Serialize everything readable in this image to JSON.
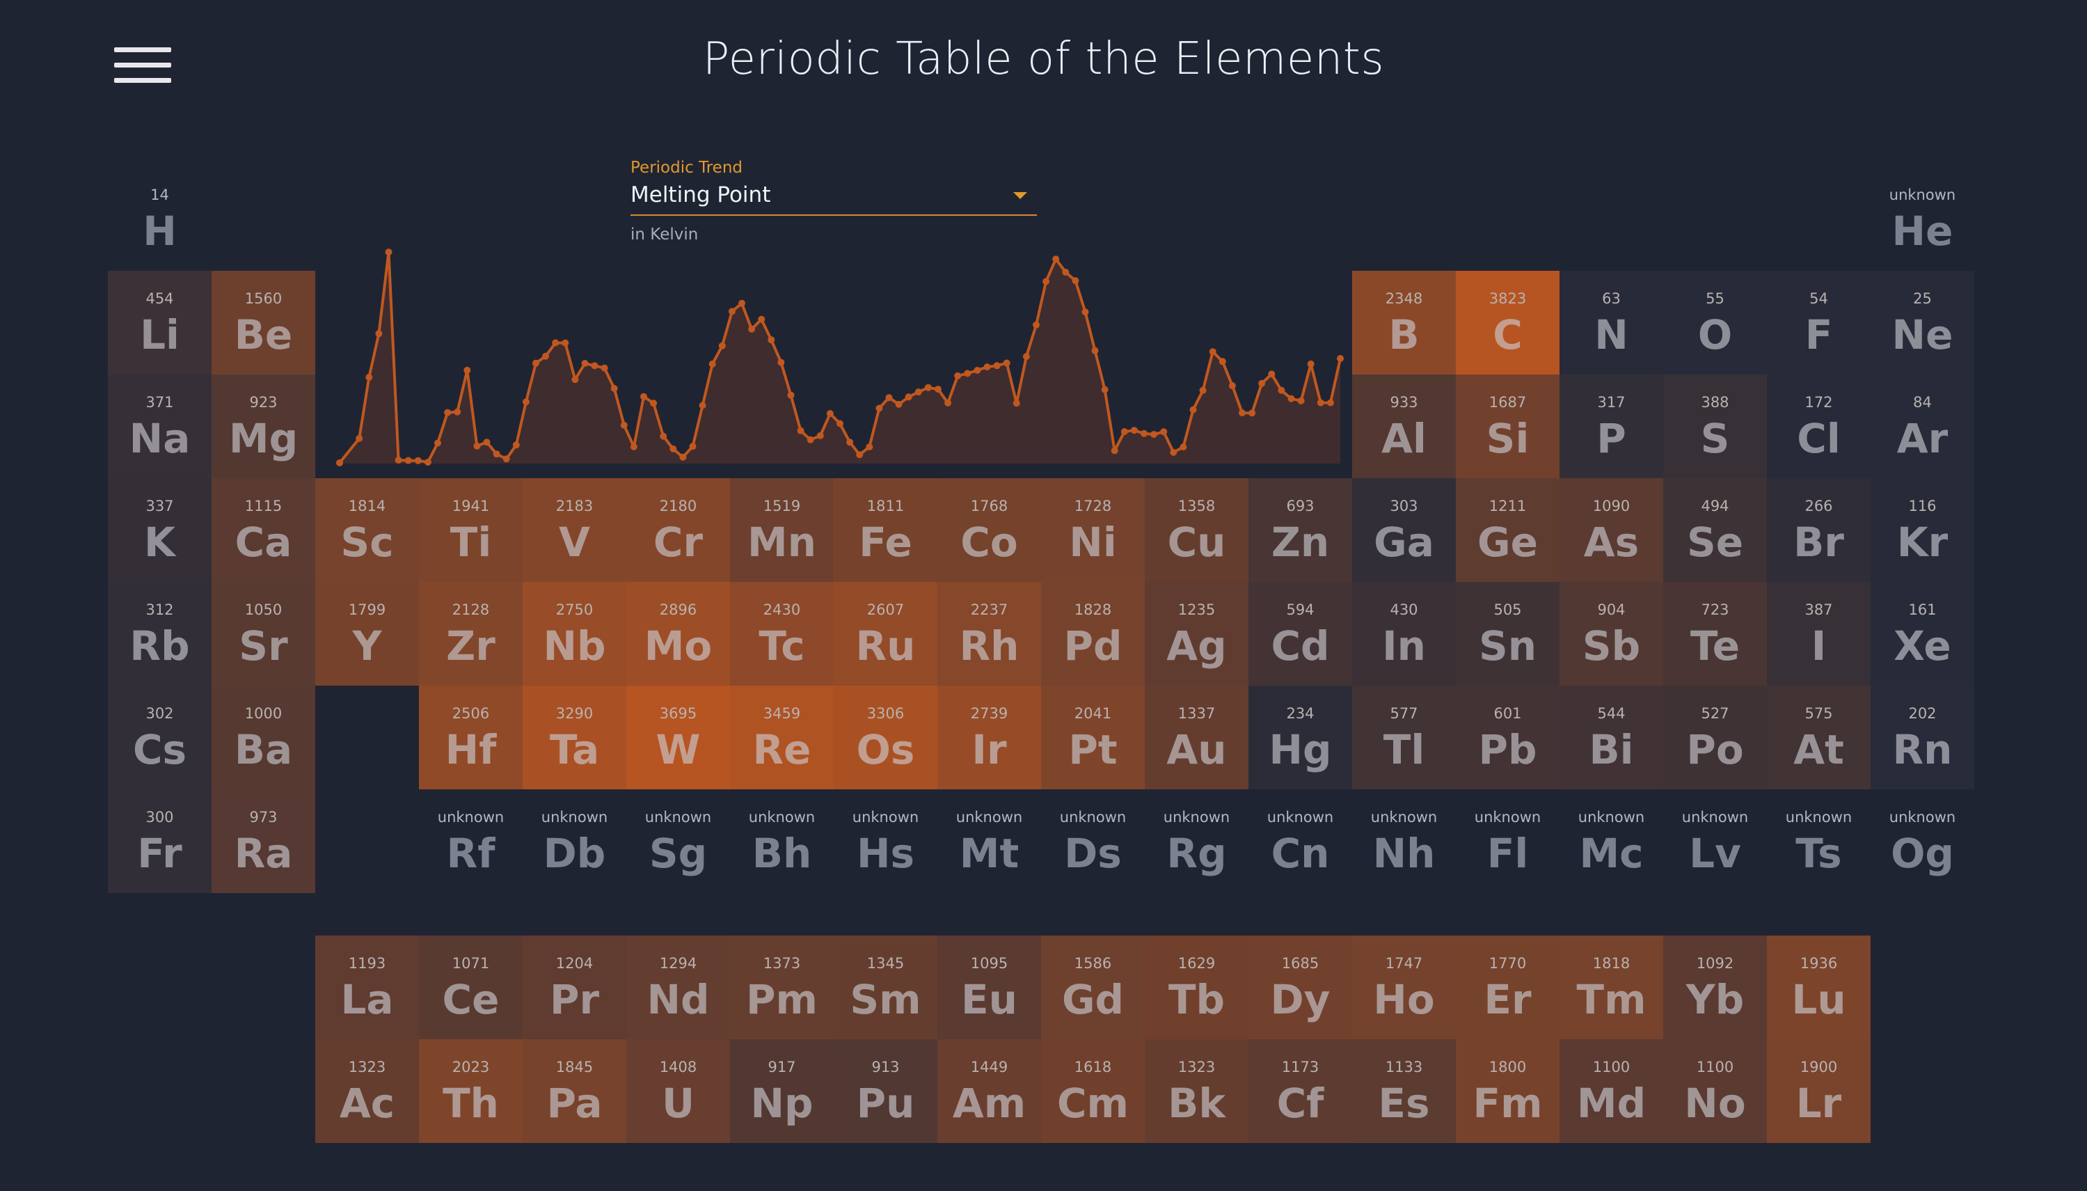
{
  "page": {
    "title": "Periodic Table of the Elements"
  },
  "menu": {
    "icon": "hamburger-menu-icon"
  },
  "trend": {
    "label": "Periodic Trend",
    "selected": "Melting Point",
    "unit": "in Kelvin"
  },
  "colors": {
    "background": "#1f2433",
    "accent": "#e09a2c",
    "chart_line": "#c0581f",
    "hot": "#b65522",
    "cold": "#272b39"
  },
  "elements": [
    {
      "z": 1,
      "sym": "H",
      "val": "14"
    },
    {
      "z": 2,
      "sym": "He",
      "val": "unknown"
    },
    {
      "z": 3,
      "sym": "Li",
      "val": "454"
    },
    {
      "z": 4,
      "sym": "Be",
      "val": "1560"
    },
    {
      "z": 5,
      "sym": "B",
      "val": "2348"
    },
    {
      "z": 6,
      "sym": "C",
      "val": "3823"
    },
    {
      "z": 7,
      "sym": "N",
      "val": "63"
    },
    {
      "z": 8,
      "sym": "O",
      "val": "55"
    },
    {
      "z": 9,
      "sym": "F",
      "val": "54"
    },
    {
      "z": 10,
      "sym": "Ne",
      "val": "25"
    },
    {
      "z": 11,
      "sym": "Na",
      "val": "371"
    },
    {
      "z": 12,
      "sym": "Mg",
      "val": "923"
    },
    {
      "z": 13,
      "sym": "Al",
      "val": "933"
    },
    {
      "z": 14,
      "sym": "Si",
      "val": "1687"
    },
    {
      "z": 15,
      "sym": "P",
      "val": "317"
    },
    {
      "z": 16,
      "sym": "S",
      "val": "388"
    },
    {
      "z": 17,
      "sym": "Cl",
      "val": "172"
    },
    {
      "z": 18,
      "sym": "Ar",
      "val": "84"
    },
    {
      "z": 19,
      "sym": "K",
      "val": "337"
    },
    {
      "z": 20,
      "sym": "Ca",
      "val": "1115"
    },
    {
      "z": 21,
      "sym": "Sc",
      "val": "1814"
    },
    {
      "z": 22,
      "sym": "Ti",
      "val": "1941"
    },
    {
      "z": 23,
      "sym": "V",
      "val": "2183"
    },
    {
      "z": 24,
      "sym": "Cr",
      "val": "2180"
    },
    {
      "z": 25,
      "sym": "Mn",
      "val": "1519"
    },
    {
      "z": 26,
      "sym": "Fe",
      "val": "1811"
    },
    {
      "z": 27,
      "sym": "Co",
      "val": "1768"
    },
    {
      "z": 28,
      "sym": "Ni",
      "val": "1728"
    },
    {
      "z": 29,
      "sym": "Cu",
      "val": "1358"
    },
    {
      "z": 30,
      "sym": "Zn",
      "val": "693"
    },
    {
      "z": 31,
      "sym": "Ga",
      "val": "303"
    },
    {
      "z": 32,
      "sym": "Ge",
      "val": "1211"
    },
    {
      "z": 33,
      "sym": "As",
      "val": "1090"
    },
    {
      "z": 34,
      "sym": "Se",
      "val": "494"
    },
    {
      "z": 35,
      "sym": "Br",
      "val": "266"
    },
    {
      "z": 36,
      "sym": "Kr",
      "val": "116"
    },
    {
      "z": 37,
      "sym": "Rb",
      "val": "312"
    },
    {
      "z": 38,
      "sym": "Sr",
      "val": "1050"
    },
    {
      "z": 39,
      "sym": "Y",
      "val": "1799"
    },
    {
      "z": 40,
      "sym": "Zr",
      "val": "2128"
    },
    {
      "z": 41,
      "sym": "Nb",
      "val": "2750"
    },
    {
      "z": 42,
      "sym": "Mo",
      "val": "2896"
    },
    {
      "z": 43,
      "sym": "Tc",
      "val": "2430"
    },
    {
      "z": 44,
      "sym": "Ru",
      "val": "2607"
    },
    {
      "z": 45,
      "sym": "Rh",
      "val": "2237"
    },
    {
      "z": 46,
      "sym": "Pd",
      "val": "1828"
    },
    {
      "z": 47,
      "sym": "Ag",
      "val": "1235"
    },
    {
      "z": 48,
      "sym": "Cd",
      "val": "594"
    },
    {
      "z": 49,
      "sym": "In",
      "val": "430"
    },
    {
      "z": 50,
      "sym": "Sn",
      "val": "505"
    },
    {
      "z": 51,
      "sym": "Sb",
      "val": "904"
    },
    {
      "z": 52,
      "sym": "Te",
      "val": "723"
    },
    {
      "z": 53,
      "sym": "I",
      "val": "387"
    },
    {
      "z": 54,
      "sym": "Xe",
      "val": "161"
    },
    {
      "z": 55,
      "sym": "Cs",
      "val": "302"
    },
    {
      "z": 56,
      "sym": "Ba",
      "val": "1000"
    },
    {
      "z": 57,
      "sym": "La",
      "val": "1193"
    },
    {
      "z": 58,
      "sym": "Ce",
      "val": "1071"
    },
    {
      "z": 59,
      "sym": "Pr",
      "val": "1204"
    },
    {
      "z": 60,
      "sym": "Nd",
      "val": "1294"
    },
    {
      "z": 61,
      "sym": "Pm",
      "val": "1373"
    },
    {
      "z": 62,
      "sym": "Sm",
      "val": "1345"
    },
    {
      "z": 63,
      "sym": "Eu",
      "val": "1095"
    },
    {
      "z": 64,
      "sym": "Gd",
      "val": "1586"
    },
    {
      "z": 65,
      "sym": "Tb",
      "val": "1629"
    },
    {
      "z": 66,
      "sym": "Dy",
      "val": "1685"
    },
    {
      "z": 67,
      "sym": "Ho",
      "val": "1747"
    },
    {
      "z": 68,
      "sym": "Er",
      "val": "1770"
    },
    {
      "z": 69,
      "sym": "Tm",
      "val": "1818"
    },
    {
      "z": 70,
      "sym": "Yb",
      "val": "1092"
    },
    {
      "z": 71,
      "sym": "Lu",
      "val": "1936"
    },
    {
      "z": 72,
      "sym": "Hf",
      "val": "2506"
    },
    {
      "z": 73,
      "sym": "Ta",
      "val": "3290"
    },
    {
      "z": 74,
      "sym": "W",
      "val": "3695"
    },
    {
      "z": 75,
      "sym": "Re",
      "val": "3459"
    },
    {
      "z": 76,
      "sym": "Os",
      "val": "3306"
    },
    {
      "z": 77,
      "sym": "Ir",
      "val": "2739"
    },
    {
      "z": 78,
      "sym": "Pt",
      "val": "2041"
    },
    {
      "z": 79,
      "sym": "Au",
      "val": "1337"
    },
    {
      "z": 80,
      "sym": "Hg",
      "val": "234"
    },
    {
      "z": 81,
      "sym": "Tl",
      "val": "577"
    },
    {
      "z": 82,
      "sym": "Pb",
      "val": "601"
    },
    {
      "z": 83,
      "sym": "Bi",
      "val": "544"
    },
    {
      "z": 84,
      "sym": "Po",
      "val": "527"
    },
    {
      "z": 85,
      "sym": "At",
      "val": "575"
    },
    {
      "z": 86,
      "sym": "Rn",
      "val": "202"
    },
    {
      "z": 87,
      "sym": "Fr",
      "val": "300"
    },
    {
      "z": 88,
      "sym": "Ra",
      "val": "973"
    },
    {
      "z": 89,
      "sym": "Ac",
      "val": "1323"
    },
    {
      "z": 90,
      "sym": "Th",
      "val": "2023"
    },
    {
      "z": 91,
      "sym": "Pa",
      "val": "1845"
    },
    {
      "z": 92,
      "sym": "U",
      "val": "1408"
    },
    {
      "z": 93,
      "sym": "Np",
      "val": "917"
    },
    {
      "z": 94,
      "sym": "Pu",
      "val": "913"
    },
    {
      "z": 95,
      "sym": "Am",
      "val": "1449"
    },
    {
      "z": 96,
      "sym": "Cm",
      "val": "1618"
    },
    {
      "z": 97,
      "sym": "Bk",
      "val": "1323"
    },
    {
      "z": 98,
      "sym": "Cf",
      "val": "1173"
    },
    {
      "z": 99,
      "sym": "Es",
      "val": "1133"
    },
    {
      "z": 100,
      "sym": "Fm",
      "val": "1800"
    },
    {
      "z": 101,
      "sym": "Md",
      "val": "1100"
    },
    {
      "z": 102,
      "sym": "No",
      "val": "1100"
    },
    {
      "z": 103,
      "sym": "Lr",
      "val": "1900"
    },
    {
      "z": 104,
      "sym": "Rf",
      "val": "unknown"
    },
    {
      "z": 105,
      "sym": "Db",
      "val": "unknown"
    },
    {
      "z": 106,
      "sym": "Sg",
      "val": "unknown"
    },
    {
      "z": 107,
      "sym": "Bh",
      "val": "unknown"
    },
    {
      "z": 108,
      "sym": "Hs",
      "val": "unknown"
    },
    {
      "z": 109,
      "sym": "Mt",
      "val": "unknown"
    },
    {
      "z": 110,
      "sym": "Ds",
      "val": "unknown"
    },
    {
      "z": 111,
      "sym": "Rg",
      "val": "unknown"
    },
    {
      "z": 112,
      "sym": "Cn",
      "val": "unknown"
    },
    {
      "z": 113,
      "sym": "Nh",
      "val": "unknown"
    },
    {
      "z": 114,
      "sym": "Fl",
      "val": "unknown"
    },
    {
      "z": 115,
      "sym": "Mc",
      "val": "unknown"
    },
    {
      "z": 116,
      "sym": "Lv",
      "val": "unknown"
    },
    {
      "z": 117,
      "sym": "Ts",
      "val": "unknown"
    },
    {
      "z": 118,
      "sym": "Og",
      "val": "unknown"
    }
  ],
  "chart_data": {
    "type": "area",
    "x_from": 1,
    "x_to": 103,
    "ylim": [
      0,
      4000
    ],
    "values": [
      14,
      null,
      454,
      1560,
      2348,
      3823,
      63,
      55,
      54,
      25,
      371,
      923,
      933,
      1687,
      317,
      388,
      172,
      84,
      337,
      1115,
      1814,
      1941,
      2183,
      2180,
      1519,
      1811,
      1768,
      1728,
      1358,
      693,
      303,
      1211,
      1090,
      494,
      266,
      116,
      312,
      1050,
      1799,
      2128,
      2750,
      2896,
      2430,
      2607,
      2237,
      1828,
      1235,
      594,
      430,
      505,
      904,
      723,
      387,
      161,
      302,
      1000,
      1193,
      1071,
      1204,
      1294,
      1373,
      1345,
      1095,
      1586,
      1629,
      1685,
      1747,
      1770,
      1818,
      1092,
      1936,
      2506,
      3290,
      3695,
      3459,
      3306,
      2739,
      2041,
      1337,
      234,
      577,
      601,
      544,
      527,
      575,
      202,
      300,
      973,
      1323,
      2023,
      1845,
      1408,
      917,
      913,
      1449,
      1618,
      1323,
      1173,
      1133,
      1800,
      1100,
      1100,
      1900
    ]
  }
}
